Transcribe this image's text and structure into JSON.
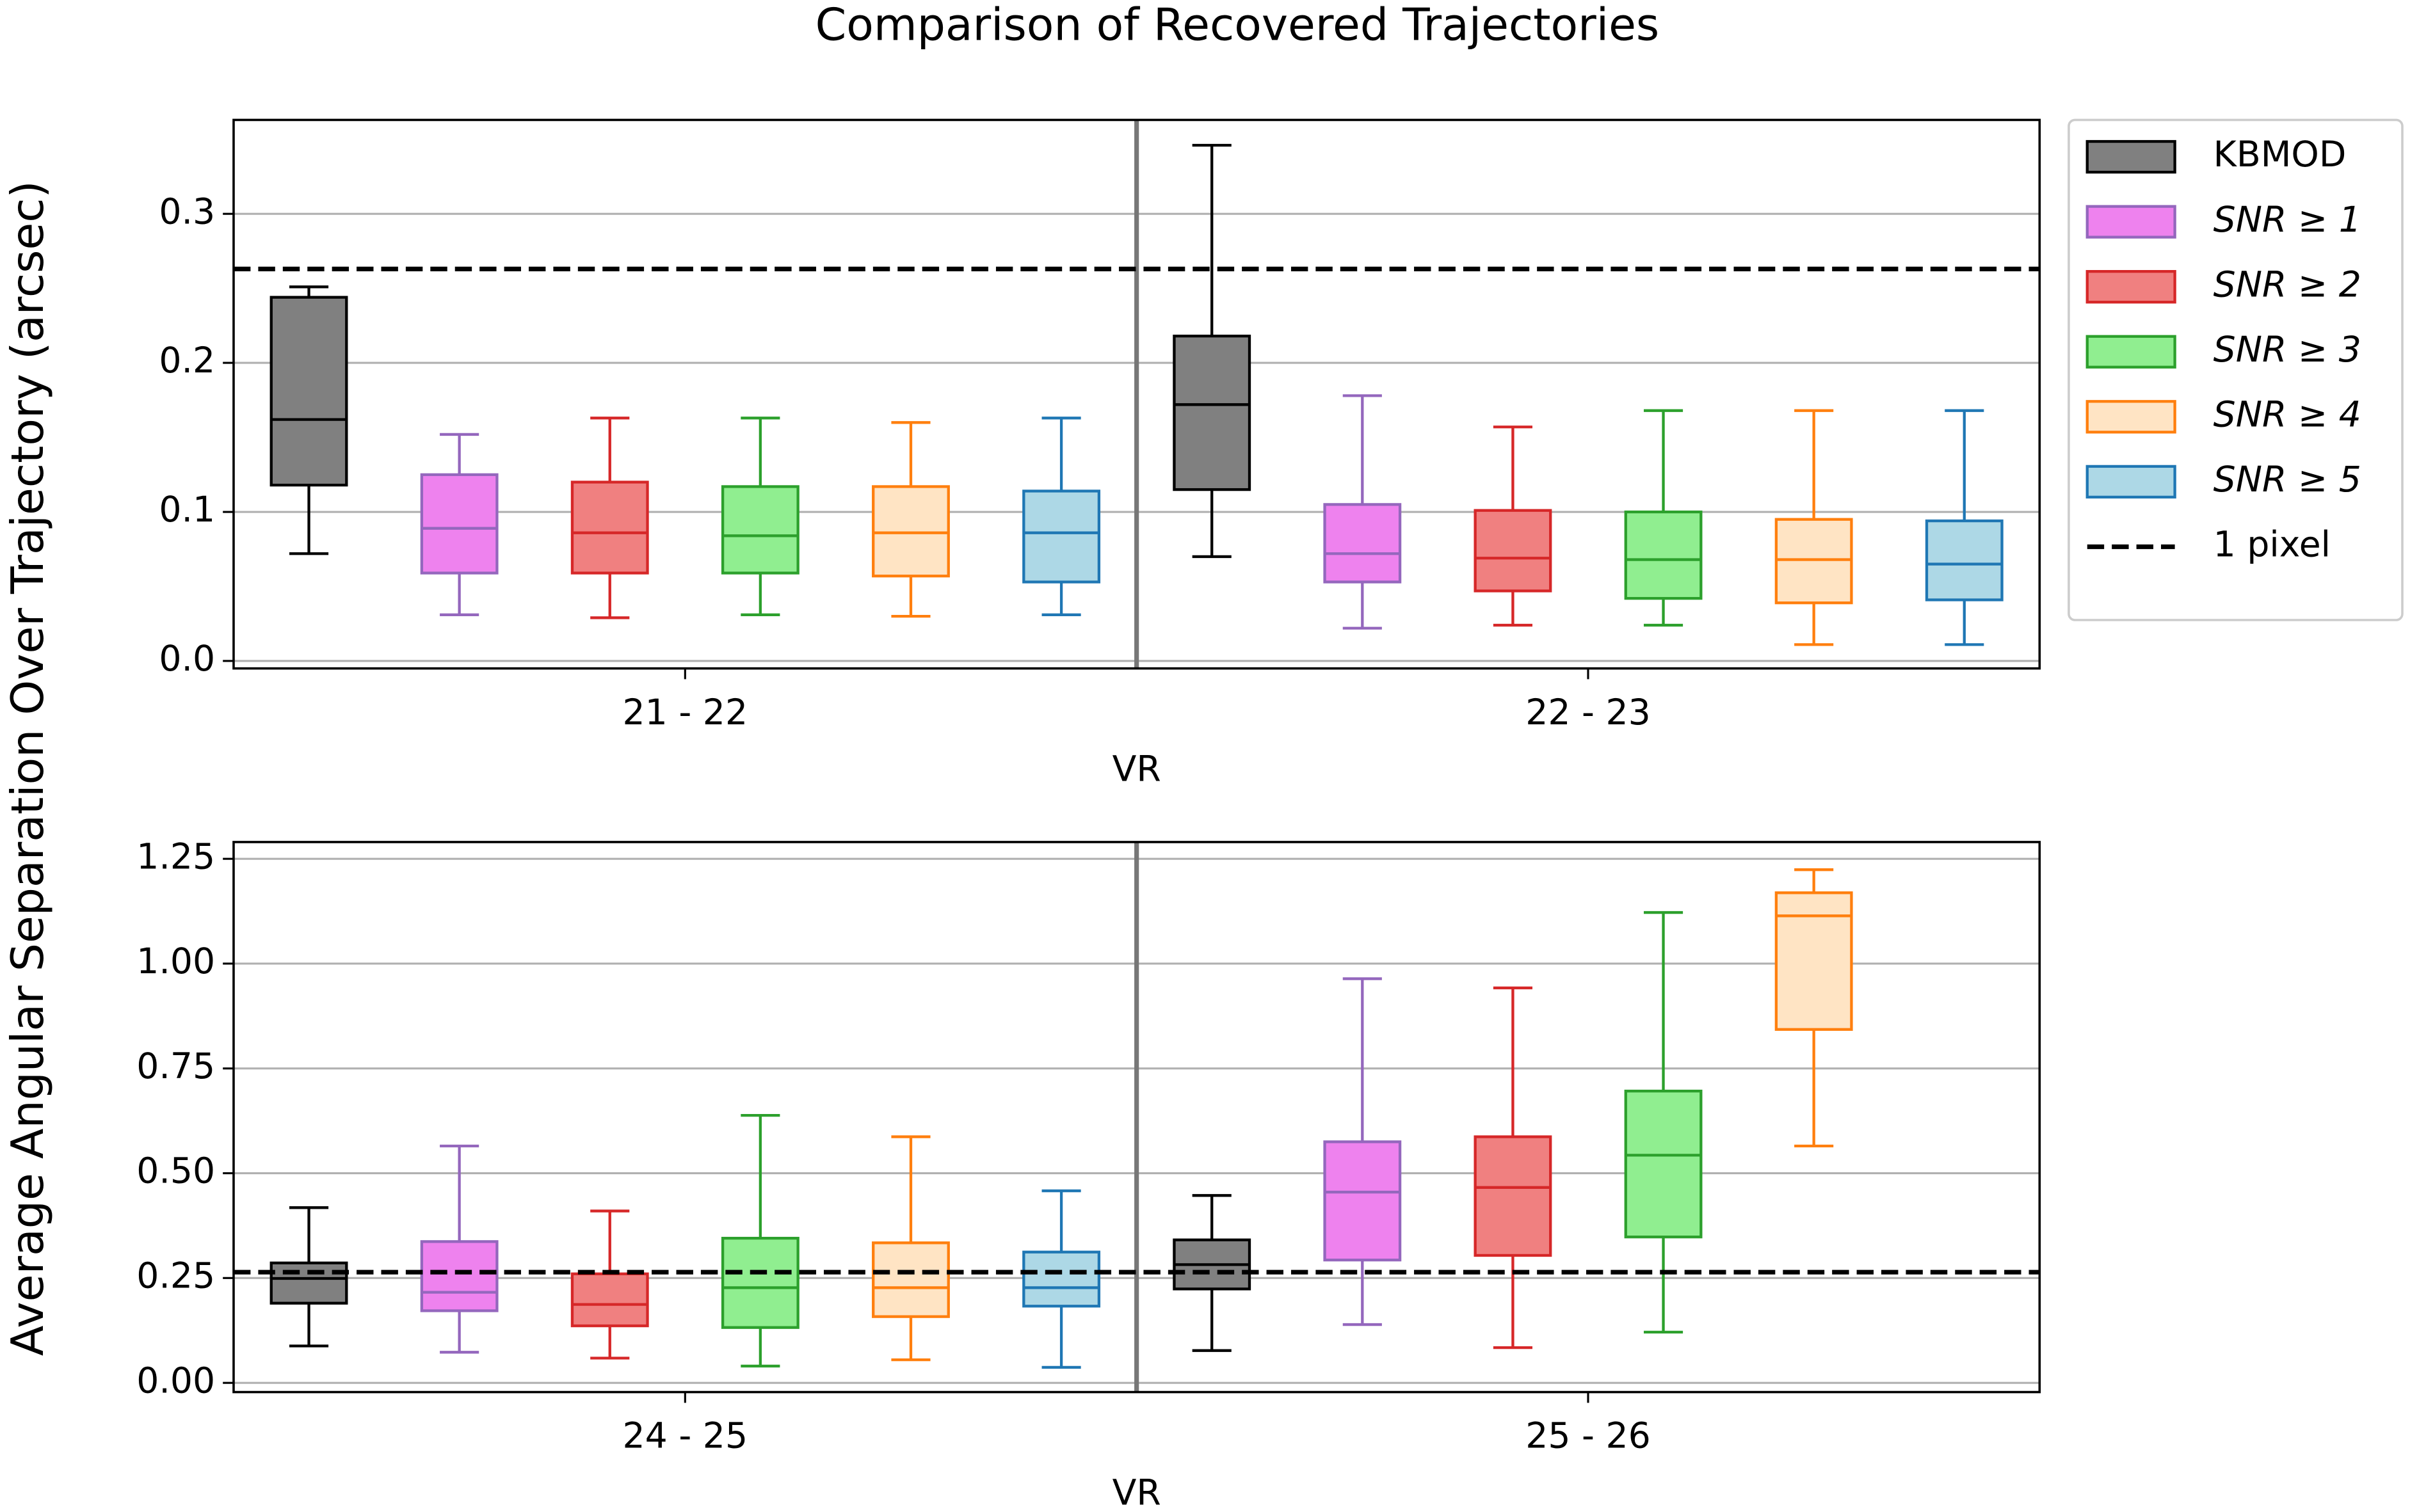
{
  "title": "Comparison of Recovered Trajectories",
  "ylabel": "Average Angular Separation Over Trajectory (arcsec)",
  "chart_data": [
    {
      "type": "box",
      "xlabel": "VR",
      "categories": [
        "21 - 22",
        "22 - 23"
      ],
      "ylim": [
        -0.005,
        0.363
      ],
      "yticks": [
        {
          "value": 0,
          "label": "0.0"
        },
        {
          "value": 0.1,
          "label": "0.1"
        },
        {
          "value": 0.2,
          "label": "0.2"
        },
        {
          "value": 0.3,
          "label": "0.3"
        }
      ],
      "grid": true,
      "legend": "outside right",
      "hline": {
        "name": "1 pixel",
        "value": 0.263,
        "color": "#000000"
      },
      "series": [
        {
          "name": "KBMOD",
          "color": "#808080",
          "edgecolor": "#000000",
          "values": [
            {
              "whislo": 0.072,
              "q1": 0.118,
              "med": 0.162,
              "q3": 0.244,
              "whishi": 0.251
            },
            {
              "whislo": 0.07,
              "q1": 0.115,
              "med": 0.172,
              "q3": 0.218,
              "whishi": 0.346
            }
          ]
        },
        {
          "name": "SNR ≥ 1",
          "color": "#ee82ee",
          "edgecolor": "#9467bd",
          "values": [
            {
              "whislo": 0.031,
              "q1": 0.059,
              "med": 0.089,
              "q3": 0.125,
              "whishi": 0.152
            },
            {
              "whislo": 0.022,
              "q1": 0.053,
              "med": 0.072,
              "q3": 0.105,
              "whishi": 0.178
            }
          ]
        },
        {
          "name": "SNR ≥ 2",
          "color": "#f08080",
          "edgecolor": "#d62728",
          "values": [
            {
              "whislo": 0.029,
              "q1": 0.059,
              "med": 0.086,
              "q3": 0.12,
              "whishi": 0.163
            },
            {
              "whislo": 0.024,
              "q1": 0.047,
              "med": 0.069,
              "q3": 0.101,
              "whishi": 0.157
            }
          ]
        },
        {
          "name": "SNR ≥ 3",
          "color": "#90ee90",
          "edgecolor": "#2ca02c",
          "values": [
            {
              "whislo": 0.031,
              "q1": 0.059,
              "med": 0.084,
              "q3": 0.117,
              "whishi": 0.163
            },
            {
              "whislo": 0.024,
              "q1": 0.042,
              "med": 0.068,
              "q3": 0.1,
              "whishi": 0.168
            }
          ]
        },
        {
          "name": "SNR ≥ 4",
          "color": "#ffe4c4",
          "edgecolor": "#ff7f0e",
          "values": [
            {
              "whislo": 0.03,
              "q1": 0.057,
              "med": 0.086,
              "q3": 0.117,
              "whishi": 0.16
            },
            {
              "whislo": 0.011,
              "q1": 0.039,
              "med": 0.068,
              "q3": 0.095,
              "whishi": 0.168
            }
          ]
        },
        {
          "name": "SNR ≥ 5",
          "color": "#add8e6",
          "edgecolor": "#1f77b4",
          "values": [
            {
              "whislo": 0.031,
              "q1": 0.053,
              "med": 0.086,
              "q3": 0.114,
              "whishi": 0.163
            },
            {
              "whislo": 0.011,
              "q1": 0.041,
              "med": 0.065,
              "q3": 0.094,
              "whishi": 0.168
            }
          ]
        }
      ]
    },
    {
      "type": "box",
      "xlabel": "VR",
      "categories": [
        "24 - 25",
        "25 - 26"
      ],
      "ylim": [
        -0.022,
        1.29
      ],
      "yticks": [
        {
          "value": 0,
          "label": "0.00"
        },
        {
          "value": 0.25,
          "label": "0.25"
        },
        {
          "value": 0.5,
          "label": "0.50"
        },
        {
          "value": 0.75,
          "label": "0.75"
        },
        {
          "value": 1,
          "label": "1.00"
        },
        {
          "value": 1.25,
          "label": "1.25"
        }
      ],
      "grid": true,
      "hline": {
        "value": 0.264,
        "color": "#000000"
      },
      "series": [
        {
          "color": "#808080",
          "edgecolor": "#000000",
          "values": [
            {
              "whislo": 0.088,
              "q1": 0.19,
              "med": 0.249,
              "q3": 0.286,
              "whishi": 0.418
            },
            {
              "whislo": 0.077,
              "q1": 0.224,
              "med": 0.282,
              "q3": 0.341,
              "whishi": 0.447
            }
          ]
        },
        {
          "color": "#ee82ee",
          "edgecolor": "#9467bd",
          "values": [
            {
              "whislo": 0.073,
              "q1": 0.172,
              "med": 0.216,
              "q3": 0.337,
              "whishi": 0.565
            },
            {
              "whislo": 0.139,
              "q1": 0.293,
              "med": 0.455,
              "q3": 0.575,
              "whishi": 0.964
            }
          ]
        },
        {
          "color": "#f08080",
          "edgecolor": "#d62728",
          "values": [
            {
              "whislo": 0.059,
              "q1": 0.136,
              "med": 0.187,
              "q3": 0.26,
              "whishi": 0.41
            },
            {
              "whislo": 0.084,
              "q1": 0.304,
              "med": 0.466,
              "q3": 0.587,
              "whishi": 0.942
            }
          ]
        },
        {
          "color": "#90ee90",
          "edgecolor": "#2ca02c",
          "values": [
            {
              "whislo": 0.04,
              "q1": 0.132,
              "med": 0.227,
              "q3": 0.345,
              "whishi": 0.638
            },
            {
              "whislo": 0.121,
              "q1": 0.348,
              "med": 0.543,
              "q3": 0.696,
              "whishi": 1.122
            }
          ]
        },
        {
          "color": "#ffe4c4",
          "edgecolor": "#ff7f0e",
          "values": [
            {
              "whislo": 0.055,
              "q1": 0.158,
              "med": 0.227,
              "q3": 0.334,
              "whishi": 0.587
            },
            {
              "whislo": 0.565,
              "q1": 0.843,
              "med": 1.114,
              "q3": 1.169,
              "whishi": 1.224
            }
          ]
        },
        {
          "color": "#add8e6",
          "edgecolor": "#1f77b4",
          "values": [
            {
              "whislo": 0.037,
              "q1": 0.183,
              "med": 0.227,
              "q3": 0.312,
              "whishi": 0.458
            },
            null
          ]
        }
      ]
    }
  ]
}
